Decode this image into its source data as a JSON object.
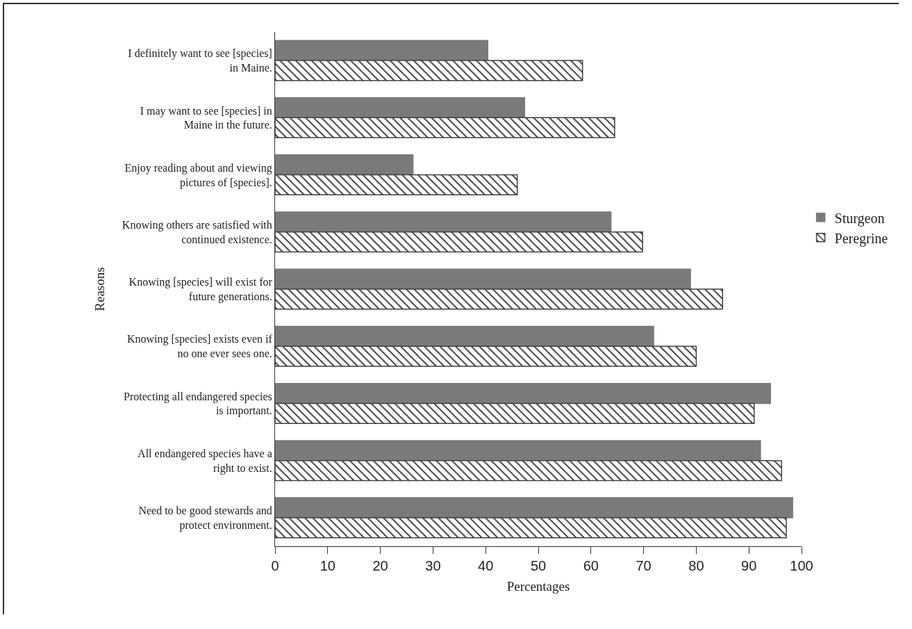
{
  "chart_data": {
    "type": "bar",
    "orientation": "horizontal",
    "xlabel": "Percentages",
    "ylabel": "Reasons",
    "categories": [
      "I definitely want to see [species] in Maine.",
      "I may want to see [species] in Maine in the future.",
      "Enjoy reading about and viewing pictures of [species].",
      "Knowing others are satisfied with continued existence.",
      "Knowing [species] will exist for future generations.",
      "Knowing [species] exists even if no one ever sees one.",
      "Protecting all endangered species is important.",
      "All endangered species have a right to exist.",
      "Need to be good stewards and protect environment."
    ],
    "series": [
      {
        "name": "Sturgeon",
        "color": "#7a7a7a",
        "values": [
          40.4,
          47.4,
          26.2,
          63.8,
          78.9,
          71.9,
          94.1,
          92.2,
          98.3
        ]
      },
      {
        "name": "Peregrine",
        "color": "#404040",
        "values": [
          58.4,
          64.5,
          46,
          69.8,
          85,
          80,
          91,
          96.2,
          97.1
        ]
      }
    ],
    "xlim": [
      0,
      100
    ],
    "xticks": [
      0,
      10,
      20,
      30,
      40,
      50,
      60,
      70,
      80,
      90,
      100
    ],
    "grid": false,
    "legend": "right"
  }
}
